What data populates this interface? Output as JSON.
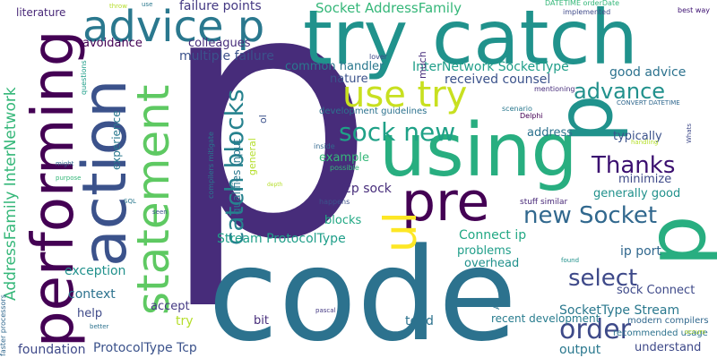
{
  "word_cloud": {
    "words": [
      {
        "text": "p",
        "color": "#472c7a"
      },
      {
        "text": "code",
        "color": "#2c728e"
      },
      {
        "text": "try catch",
        "color": "#20928c"
      },
      {
        "text": "using",
        "color": "#28ae80"
      },
      {
        "text": "pre",
        "color": "#440154"
      },
      {
        "text": "advice p",
        "color": "#2a788e"
      },
      {
        "text": "performing",
        "color": "#440154"
      },
      {
        "text": "action",
        "color": "#3b528b"
      },
      {
        "text": "statement",
        "color": "#5ec962"
      },
      {
        "text": "use try",
        "color": "#c8e020"
      },
      {
        "text": "catch blocks",
        "color": "#26828e"
      },
      {
        "text": "ul",
        "color": "#fde725"
      },
      {
        "text": "order",
        "color": "#3e4a89"
      },
      {
        "text": "select",
        "color": "#3e4989"
      },
      {
        "text": "new Socket",
        "color": "#31688e"
      },
      {
        "text": "Thanks",
        "color": "#3b0f70"
      },
      {
        "text": "advance",
        "color": "#21918c"
      },
      {
        "text": "sock new",
        "color": "#1fa187"
      },
      {
        "text": "Socket AddressFamily",
        "color": "#35b779"
      },
      {
        "text": "AddressFamily InterNetwork",
        "color": "#35b779"
      },
      {
        "text": "InterNetwork SocketType",
        "color": "#1f9e89"
      },
      {
        "text": "received counsel",
        "color": "#3b528b"
      },
      {
        "text": "good advice",
        "color": "#2c728e"
      },
      {
        "text": "common handler",
        "color": "#2a788e"
      },
      {
        "text": "multiple failure",
        "color": "#3b528b"
      },
      {
        "text": "failure points",
        "color": "#443983"
      },
      {
        "text": "colleagues",
        "color": "#472d7b"
      },
      {
        "text": "avoidance",
        "color": "#440154"
      },
      {
        "text": "literature",
        "color": "#482878"
      },
      {
        "text": "Stream ProtocolType",
        "color": "#1f9e89"
      },
      {
        "text": "ProtocolType Tcp",
        "color": "#3b528b"
      },
      {
        "text": "SocketType Stream",
        "color": "#2a788e"
      },
      {
        "text": "Connect ip",
        "color": "#22a884"
      },
      {
        "text": "ip port",
        "color": "#31688e"
      },
      {
        "text": "Tcp sock",
        "color": "#472d7b"
      },
      {
        "text": "sock Connect",
        "color": "#3e4989"
      },
      {
        "text": "foundation",
        "color": "#3e4989"
      },
      {
        "text": "exception",
        "color": "#21918c"
      },
      {
        "text": "context",
        "color": "#2c728e"
      },
      {
        "text": "help",
        "color": "#3e4989"
      },
      {
        "text": "accept",
        "color": "#443983"
      },
      {
        "text": "try",
        "color": "#b5de2b"
      },
      {
        "text": "bit",
        "color": "#472d7b"
      },
      {
        "text": "tend",
        "color": "#2c728e"
      },
      {
        "text": "output",
        "color": "#2a788e"
      },
      {
        "text": "understand",
        "color": "#3e4989"
      },
      {
        "text": "blocks",
        "color": "#22a884"
      },
      {
        "text": "problems",
        "color": "#1f9e89"
      },
      {
        "text": "overhead",
        "color": "#21918c"
      },
      {
        "text": "nature",
        "color": "#3b528b"
      },
      {
        "text": "development guidelines",
        "color": "#2c728e"
      },
      {
        "text": "qualifies input",
        "color": "#2a788e"
      },
      {
        "text": "example",
        "color": "#35b779"
      },
      {
        "text": "address",
        "color": "#2c728e"
      },
      {
        "text": "typically",
        "color": "#3b528b"
      },
      {
        "text": "minimize",
        "color": "#3e4a89"
      },
      {
        "text": "generally good",
        "color": "#21918c"
      },
      {
        "text": "recent development",
        "color": "#287c8e"
      },
      {
        "text": "recommended usage",
        "color": "#2c728e"
      },
      {
        "text": "modern compilers",
        "color": "#31688e"
      },
      {
        "text": "experience",
        "color": "#2a788e"
      },
      {
        "text": "general",
        "color": "#b5de2b"
      },
      {
        "text": "much",
        "color": "#472d7b"
      },
      {
        "text": "ol",
        "color": "#3b528b"
      },
      {
        "text": "questions",
        "color": "#1f9e89"
      },
      {
        "text": "faster processors",
        "color": "#31688e"
      },
      {
        "text": "compilers mitigate",
        "color": "#2a788e"
      },
      {
        "text": "DATETIME orderDate",
        "color": "#35b779"
      },
      {
        "text": "CONVERT DATETIME",
        "color": "#31688e"
      },
      {
        "text": "implemented",
        "color": "#3e4989"
      },
      {
        "text": "mentioning",
        "color": "#472d7b"
      },
      {
        "text": "best way",
        "color": "#3b0f70"
      },
      {
        "text": "throw",
        "color": "#b5de2b"
      },
      {
        "text": "use",
        "color": "#2a788e"
      },
      {
        "text": "lover",
        "color": "#3e4989"
      },
      {
        "text": "scenario",
        "color": "#2a788e"
      },
      {
        "text": "Delphi",
        "color": "#440154"
      },
      {
        "text": "Whats",
        "color": "#3e4989"
      },
      {
        "text": "handling",
        "color": "#b5de2b"
      },
      {
        "text": "inside",
        "color": "#31688e"
      },
      {
        "text": "possible",
        "color": "#35b779"
      },
      {
        "text": "happens",
        "color": "#3b528b"
      },
      {
        "text": "stuff similar",
        "color": "#482878"
      },
      {
        "text": "found",
        "color": "#21918c"
      },
      {
        "text": "pascal",
        "color": "#443983"
      },
      {
        "text": "better",
        "color": "#2c728e"
      },
      {
        "text": "occurs",
        "color": "#b5de2b"
      },
      {
        "text": "might",
        "color": "#31688e"
      },
      {
        "text": "purpose",
        "color": "#35b779"
      },
      {
        "text": "SQL",
        "color": "#2a788e"
      },
      {
        "text": "seen",
        "color": "#3b528b"
      },
      {
        "text": "depth",
        "color": "#b5de2b"
      },
      {
        "text": "AJ",
        "color": "#2c728e"
      }
    ]
  }
}
